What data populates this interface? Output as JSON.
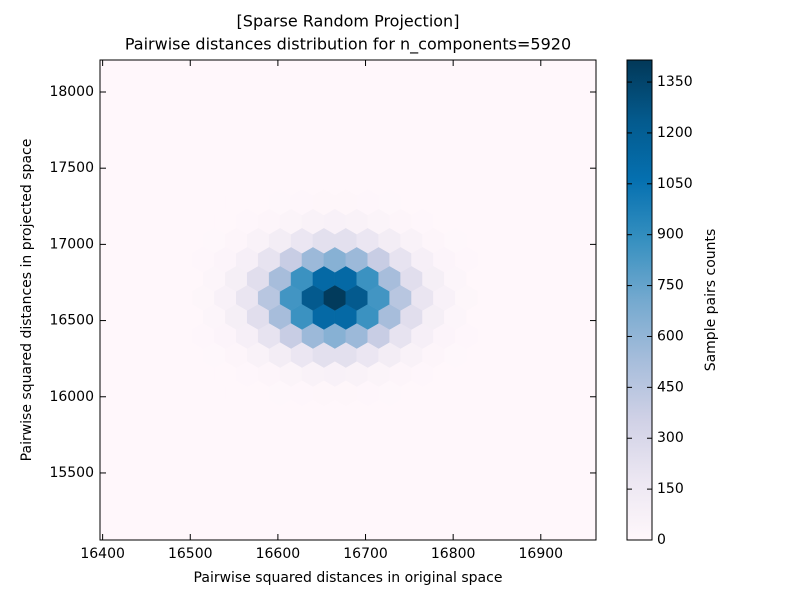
{
  "chart_data": {
    "type": "hexbin",
    "title": "[Sparse Random Projection]",
    "subtitle": "Pairwise distances distribution for n_components=5920",
    "x_label": "Pairwise squared distances in original space",
    "y_label": "Pairwise squared distances in projected space",
    "colorbar_label": "Sample pairs counts",
    "xlim": [
      16397,
      16963
    ],
    "ylim": [
      15060,
      18210
    ],
    "xticks": [
      16400,
      16500,
      16600,
      16700,
      16800,
      16900
    ],
    "yticks": [
      15500,
      16000,
      16500,
      17000,
      17500,
      18000
    ],
    "clim": [
      0,
      1415
    ],
    "cticks": [
      0,
      150,
      300,
      450,
      600,
      750,
      900,
      1050,
      1200,
      1350
    ],
    "colormap": [
      "#fff7fb",
      "#ece7f2",
      "#d0d1e6",
      "#a6bddb",
      "#74a9cf",
      "#3690c0",
      "#0570b0",
      "#045a8d",
      "#023858"
    ],
    "rows": [
      {
        "y": 16025,
        "x": [
          16527.5,
          16552.5,
          16577.5,
          16602.5,
          16627.5,
          16652.5,
          16677.5,
          16702.5,
          16727.5,
          16752.5,
          16777.5,
          16802.5
        ],
        "counts": [
          0,
          1,
          2,
          5,
          8,
          11,
          11,
          8,
          5,
          2,
          1,
          0
        ]
      },
      {
        "y": 16150,
        "x": [
          16515,
          16540,
          16565,
          16590,
          16615,
          16640,
          16665,
          16690,
          16715,
          16740,
          16765,
          16790,
          16815
        ],
        "counts": [
          1,
          3,
          8,
          20,
          38,
          55,
          62,
          55,
          38,
          20,
          8,
          3,
          1
        ]
      },
      {
        "y": 16275,
        "x": [
          16527.5,
          16552.5,
          16577.5,
          16602.5,
          16627.5,
          16652.5,
          16677.5,
          16702.5,
          16727.5,
          16752.5,
          16777.5,
          16802.5
        ],
        "counts": [
          5,
          19,
          52,
          110,
          182,
          234,
          234,
          182,
          110,
          52,
          19,
          5
        ]
      },
      {
        "y": 16400,
        "x": [
          16515,
          16540,
          16565,
          16590,
          16615,
          16640,
          16665,
          16690,
          16715,
          16740,
          16765,
          16790,
          16815
        ],
        "counts": [
          7,
          28,
          87,
          208,
          389,
          565,
          641,
          565,
          389,
          208,
          87,
          28,
          7
        ]
      },
      {
        "y": 16525,
        "x": [
          16527.5,
          16552.5,
          16577.5,
          16602.5,
          16627.5,
          16652.5,
          16677.5,
          16702.5,
          16727.5,
          16752.5,
          16777.5,
          16802.5
        ],
        "counts": [
          26,
          92,
          249,
          528,
          870,
          1116,
          1116,
          870,
          528,
          249,
          92,
          26
        ]
      },
      {
        "y": 16650,
        "x": [
          16515,
          16540,
          16565,
          16590,
          16615,
          16640,
          16665,
          16690,
          16715,
          16740,
          16765,
          16790,
          16815
        ],
        "counts": [
          16,
          61,
          189,
          455,
          850,
          1235,
          1400,
          1235,
          850,
          455,
          189,
          61,
          16
        ]
      },
      {
        "y": 16775,
        "x": [
          16527.5,
          16552.5,
          16577.5,
          16602.5,
          16627.5,
          16652.5,
          16677.5,
          16702.5,
          16727.5,
          16752.5,
          16777.5,
          16802.5
        ],
        "counts": [
          26,
          92,
          249,
          528,
          870,
          1116,
          1116,
          870,
          528,
          249,
          92,
          26
        ]
      },
      {
        "y": 16900,
        "x": [
          16515,
          16540,
          16565,
          16590,
          16615,
          16640,
          16665,
          16690,
          16715,
          16740,
          16765,
          16790,
          16815
        ],
        "counts": [
          7,
          28,
          87,
          208,
          389,
          565,
          641,
          565,
          389,
          208,
          87,
          28,
          7
        ]
      },
      {
        "y": 17025,
        "x": [
          16527.5,
          16552.5,
          16577.5,
          16602.5,
          16627.5,
          16652.5,
          16677.5,
          16702.5,
          16727.5,
          16752.5,
          16777.5,
          16802.5
        ],
        "counts": [
          5,
          19,
          52,
          110,
          182,
          234,
          234,
          182,
          110,
          52,
          19,
          5
        ]
      },
      {
        "y": 17150,
        "x": [
          16515,
          16540,
          16565,
          16590,
          16615,
          16640,
          16665,
          16690,
          16715,
          16740,
          16765,
          16790,
          16815
        ],
        "counts": [
          1,
          3,
          8,
          20,
          38,
          55,
          62,
          55,
          38,
          20,
          8,
          3,
          1
        ]
      },
      {
        "y": 17275,
        "x": [
          16527.5,
          16552.5,
          16577.5,
          16602.5,
          16627.5,
          16652.5,
          16677.5,
          16702.5,
          16727.5,
          16752.5,
          16777.5,
          16802.5
        ],
        "counts": [
          0,
          1,
          2,
          5,
          8,
          11,
          11,
          8,
          5,
          2,
          1,
          0
        ]
      }
    ]
  }
}
